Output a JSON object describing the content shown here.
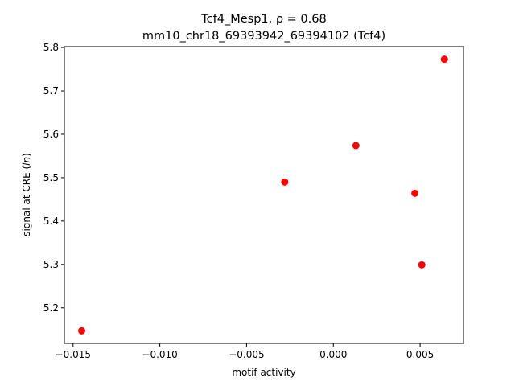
{
  "chart_data": {
    "type": "scatter",
    "title_line1": "Tcf4_Mesp1, ρ = 0.68",
    "title_line2": "mm10_chr18_69393942_69394102 (Tcf4)",
    "xlabel": "motif activity",
    "ylabel_prefix": "signal at CRE (",
    "ylabel_italic": "ln",
    "ylabel_suffix": ")",
    "xlim": [
      -0.0155,
      0.0075
    ],
    "ylim": [
      5.118,
      5.802
    ],
    "xticks": [
      -0.015,
      -0.01,
      -0.005,
      0.0,
      0.005
    ],
    "xtick_labels": [
      "−0.015",
      "−0.010",
      "−0.005",
      "0.000",
      "0.005"
    ],
    "yticks": [
      5.2,
      5.3,
      5.4,
      5.5,
      5.6,
      5.7,
      5.8
    ],
    "ytick_labels": [
      "5.2",
      "5.3",
      "5.4",
      "5.5",
      "5.6",
      "5.7",
      "5.8"
    ],
    "grid": false,
    "marker_color": "#ff0000",
    "points": [
      {
        "x": -0.0145,
        "y": 5.147
      },
      {
        "x": -0.0028,
        "y": 5.49
      },
      {
        "x": 0.0013,
        "y": 5.574
      },
      {
        "x": 0.0047,
        "y": 5.464
      },
      {
        "x": 0.0051,
        "y": 5.299
      },
      {
        "x": 0.0064,
        "y": 5.773
      }
    ]
  }
}
